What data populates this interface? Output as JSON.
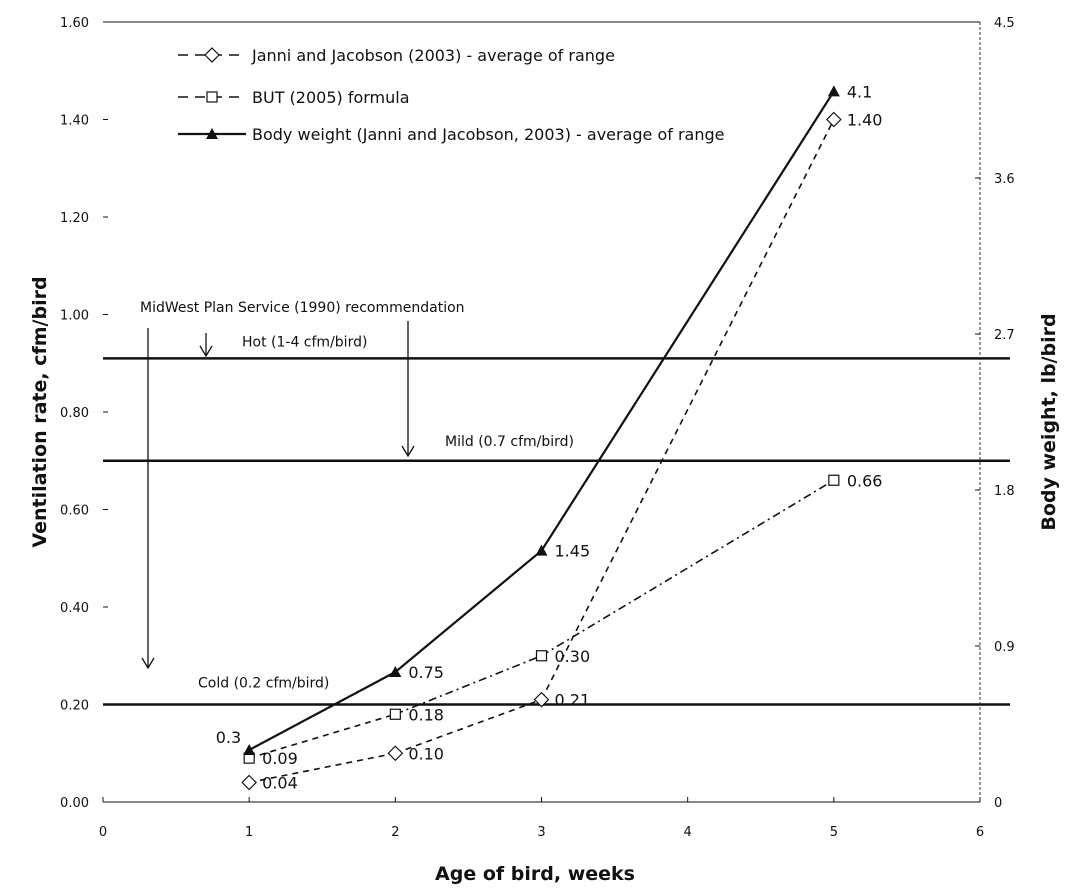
{
  "chart_data": {
    "type": "line",
    "xlabel": "Age of bird, weeks",
    "ylabel": "Ventilation rate, cfm/bird",
    "y2label": "Body weight, lb/bird",
    "xlim": [
      0,
      6
    ],
    "ylim": [
      0,
      1.6
    ],
    "y2lim": [
      0,
      4.5
    ],
    "x_ticks": [
      "0",
      "1",
      "2",
      "3",
      "4",
      "5",
      "6"
    ],
    "y_ticks": [
      "0.00",
      "0.20",
      "0.40",
      "0.60",
      "0.80",
      "1.00",
      "1.20",
      "1.40",
      "1.60"
    ],
    "y2_ticks": [
      "0",
      "0.9",
      "1.8",
      "2.7",
      "3.6",
      "4.5"
    ],
    "legend_position": "top-left",
    "series": [
      {
        "name": "Janni and Jacobson (2003) - average of range",
        "axis": "left",
        "marker": "diamond",
        "line": "dashed",
        "x": [
          1,
          2,
          3,
          5
        ],
        "values": [
          0.04,
          0.1,
          0.21,
          1.4
        ],
        "labels": [
          "0.04",
          "0.10",
          "0.21",
          "1.40"
        ]
      },
      {
        "name": "BUT (2005)  formula",
        "axis": "left",
        "marker": "square",
        "line": "dashed",
        "x": [
          1,
          2,
          3,
          5
        ],
        "values": [
          0.09,
          0.18,
          0.3,
          0.66
        ],
        "labels": [
          "0.09",
          "0.18",
          "0.30",
          "0.66"
        ]
      },
      {
        "name": "Body weight (Janni and Jacobson, 2003) - average of range",
        "axis": "right",
        "marker": "triangle",
        "line": "solid",
        "x": [
          1,
          2,
          3,
          5
        ],
        "values": [
          0.3,
          0.75,
          1.45,
          4.1
        ],
        "labels": [
          "0.3",
          "0.75",
          "1.45",
          "4.1"
        ]
      }
    ],
    "reference_lines": [
      {
        "value": 0.91,
        "label": "Hot (1-4 cfm/bird)"
      },
      {
        "value": 0.7,
        "label": "Mild (0.7 cfm/bird)"
      },
      {
        "value": 0.2,
        "label": "Cold (0.2 cfm/bird)"
      }
    ],
    "annotations": {
      "recommendation": "MidWest Plan Service (1990) recommendation"
    }
  }
}
